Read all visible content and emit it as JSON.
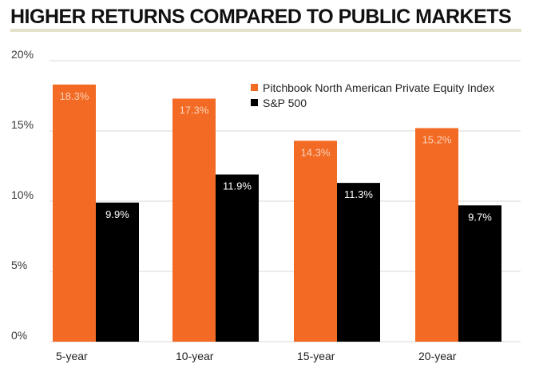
{
  "colors": {
    "pe": "#f26a23",
    "sp": "#000000",
    "rule": "#e5e0c9",
    "grid": "#d9d9d9",
    "pe_label": "#fbd3bd",
    "sp_label": "#ffffff"
  },
  "chart_data": {
    "type": "bar",
    "title": "HIGHER RETURNS COMPARED TO PUBLIC MARKETS",
    "xlabel": "",
    "ylabel": "",
    "categories": [
      "5-year",
      "10-year",
      "15-year",
      "20-year"
    ],
    "series": [
      {
        "name": "Pitchbook North American Private Equity Index",
        "values": [
          18.3,
          17.3,
          14.3,
          15.2
        ],
        "labels": [
          "18.3%",
          "17.3%",
          "14.3%",
          "15.2%"
        ]
      },
      {
        "name": "S&P 500",
        "values": [
          9.9,
          11.9,
          11.3,
          9.7
        ],
        "labels": [
          "9.9%",
          "11.9%",
          "11.3%",
          "9.7%"
        ]
      }
    ],
    "ylim": [
      0,
      20
    ],
    "yticks": [
      0,
      5,
      10,
      15,
      20
    ],
    "ytick_labels": [
      "0%",
      "5%",
      "10%",
      "15%",
      "20%"
    ],
    "grid": true,
    "legend_position": "top-right"
  }
}
